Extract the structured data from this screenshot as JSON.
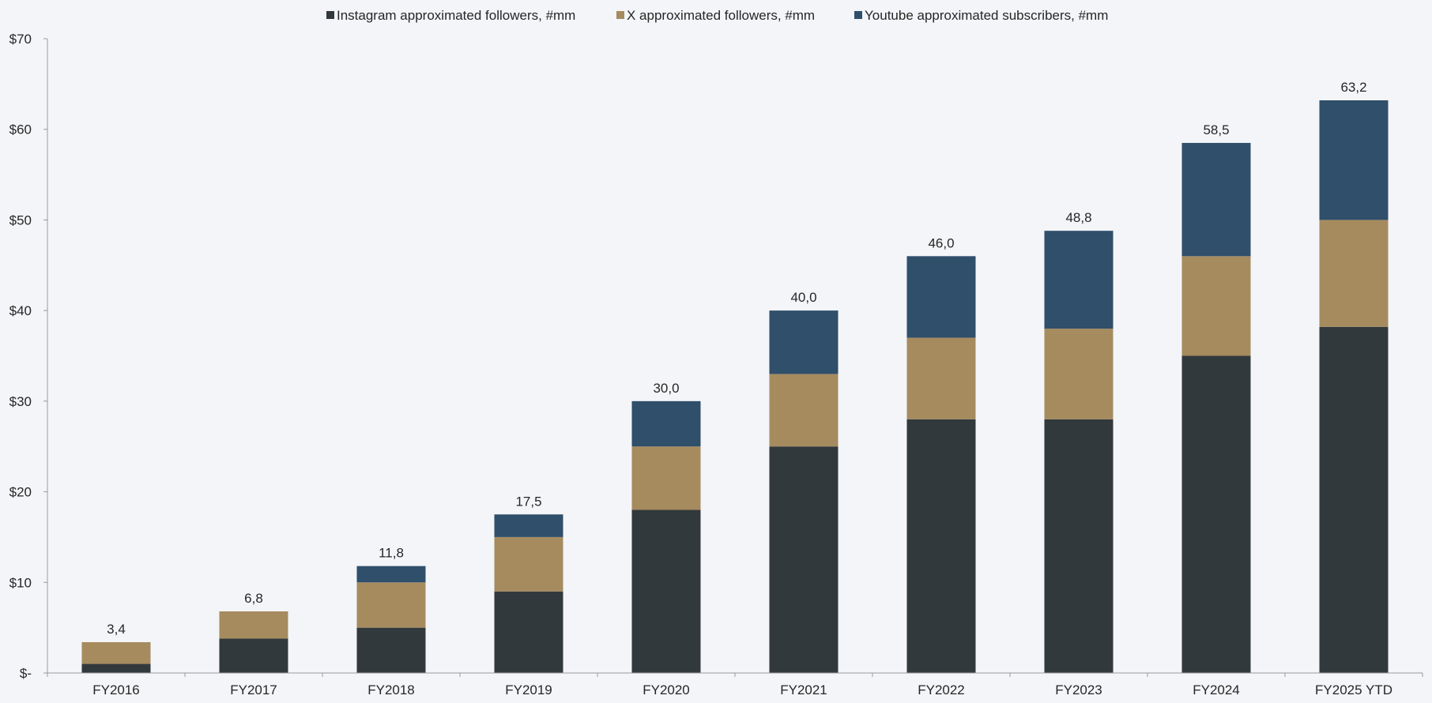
{
  "chart_data": {
    "type": "bar",
    "stacked": true,
    "title": "",
    "xlabel": "",
    "ylabel": "",
    "ylim": [
      0,
      70
    ],
    "yticks": [
      0,
      10,
      20,
      30,
      40,
      50,
      60,
      70
    ],
    "ytick_labels": [
      "$-",
      "$10",
      "$20",
      "$30",
      "$40",
      "$50",
      "$60",
      "$70"
    ],
    "categories": [
      "FY2016",
      "FY2017",
      "FY2018",
      "FY2019",
      "FY2020",
      "FY2021",
      "FY2022",
      "FY2023",
      "FY2024",
      "FY2025 YTD"
    ],
    "series": [
      {
        "name": "Instagram approximated followers, #mm",
        "color": "#32393d",
        "values": [
          1.0,
          3.8,
          5.0,
          9.0,
          18.0,
          25.0,
          28.0,
          28.0,
          35.0,
          38.2
        ]
      },
      {
        "name": "X approximated followers, #mm",
        "color": "#a68b5f",
        "values": [
          2.4,
          3.0,
          5.0,
          6.0,
          7.0,
          8.0,
          9.0,
          10.0,
          11.0,
          11.8
        ]
      },
      {
        "name": "Youtube approximated subscribers, #mm",
        "color": "#2f4f6b",
        "values": [
          0.0,
          0.0,
          1.8,
          2.5,
          5.0,
          7.0,
          9.0,
          10.8,
          12.5,
          13.2
        ]
      }
    ],
    "totals": [
      3.4,
      6.8,
      11.8,
      17.5,
      30.0,
      40.0,
      46.0,
      48.8,
      58.5,
      63.2
    ],
    "total_labels": [
      "3,4",
      "6,8",
      "11,8",
      "17,5",
      "30,0",
      "40,0",
      "46,0",
      "48,8",
      "58,5",
      "63,2"
    ],
    "legend_position": "top-center",
    "grid": false
  }
}
